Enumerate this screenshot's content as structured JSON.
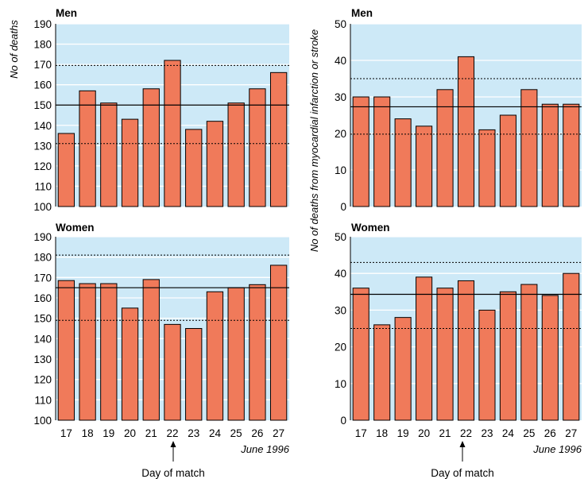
{
  "figure": {
    "left_ylabel": "No of deaths",
    "right_ylabel": "No of deaths from myocardial infarction or stroke",
    "date_note": "June 1996",
    "match_label": "Day of match",
    "match_day": "22"
  },
  "colors": {
    "panel_bg": "#cde9f7",
    "bar_fill": "#f07a5a",
    "bar_stroke": "#000000",
    "gridline": "#ffffff"
  },
  "chart_data": [
    {
      "type": "bar",
      "title": "Men",
      "ylabel": "No of deaths",
      "categories": [
        "17",
        "18",
        "19",
        "20",
        "21",
        "22",
        "23",
        "24",
        "25",
        "26",
        "27"
      ],
      "values": [
        136,
        157,
        151,
        143,
        158,
        172,
        138,
        142,
        151,
        158,
        166
      ],
      "ylim": [
        100,
        190
      ],
      "yticks": [
        100,
        110,
        120,
        130,
        140,
        150,
        160,
        170,
        180,
        190
      ],
      "mean_line": 150,
      "limit_lines": [
        131,
        169.5
      ],
      "grid": true
    },
    {
      "type": "bar",
      "title": "Men",
      "ylabel": "No of deaths from myocardial infarction or stroke",
      "categories": [
        "17",
        "18",
        "19",
        "20",
        "21",
        "22",
        "23",
        "24",
        "25",
        "26",
        "27"
      ],
      "values": [
        30,
        30,
        24,
        22,
        32,
        41,
        21,
        25,
        32,
        28,
        28
      ],
      "ylim": [
        0,
        50
      ],
      "yticks": [
        0,
        10,
        20,
        30,
        40,
        50
      ],
      "mean_line": 27.3,
      "limit_lines": [
        19.8,
        35
      ],
      "grid": true
    },
    {
      "type": "bar",
      "title": "Women",
      "ylabel": "No of deaths",
      "categories": [
        "17",
        "18",
        "19",
        "20",
        "21",
        "22",
        "23",
        "24",
        "25",
        "26",
        "27"
      ],
      "values": [
        168.5,
        167,
        167,
        155,
        169,
        147,
        145,
        163,
        165,
        166.5,
        176
      ],
      "ylim": [
        100,
        190
      ],
      "yticks": [
        100,
        110,
        120,
        130,
        140,
        150,
        160,
        170,
        180,
        190
      ],
      "mean_line": 165,
      "limit_lines": [
        149,
        181
      ],
      "grid": true
    },
    {
      "type": "bar",
      "title": "Women",
      "ylabel": "No of deaths from myocardial infarction or stroke",
      "categories": [
        "17",
        "18",
        "19",
        "20",
        "21",
        "22",
        "23",
        "24",
        "25",
        "26",
        "27"
      ],
      "values": [
        36,
        26,
        28,
        39,
        36,
        38,
        30,
        35,
        37,
        34,
        40
      ],
      "ylim": [
        0,
        50
      ],
      "yticks": [
        0,
        10,
        20,
        30,
        40,
        50
      ],
      "mean_line": 34.3,
      "limit_lines": [
        25,
        43
      ],
      "grid": true
    }
  ]
}
